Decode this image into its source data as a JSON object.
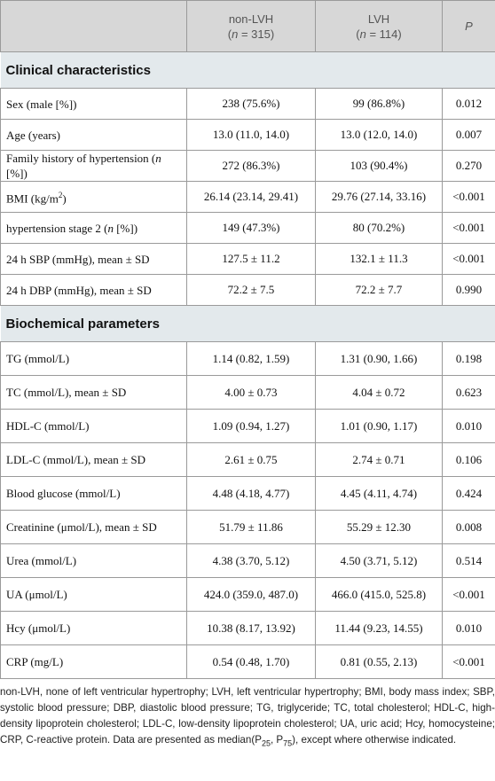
{
  "table": {
    "header": [
      {
        "lines": [
          [
            "non-LVH"
          ],
          [
            "(",
            {
              "i": "n"
            },
            " = 315)"
          ]
        ]
      },
      {
        "lines": [
          [
            "LVH"
          ],
          [
            "(",
            {
              "i": "n"
            },
            " = 114)"
          ]
        ]
      },
      {
        "lines": [
          [
            {
              "i": "P"
            }
          ]
        ]
      }
    ],
    "sections": [
      {
        "title": "Clinical characteristics",
        "rows": [
          {
            "label": "Sex (male [%])",
            "cells": [
              "238 (75.6%)",
              "99 (86.8%)",
              "0.012"
            ]
          },
          {
            "label": "Age (years)",
            "cells": [
              "13.0 (11.0, 14.0)",
              "13.0 (12.0, 14.0)",
              "0.007"
            ]
          },
          {
            "label": [
              "Family history of hypertension (",
              {
                "i": "n"
              },
              " [%])"
            ],
            "cells": [
              "272 (86.3%)",
              "103 (90.4%)",
              "0.270"
            ]
          },
          {
            "label": [
              "BMI (kg/m",
              {
                "sup": "2"
              },
              ")"
            ],
            "cells": [
              "26.14 (23.14, 29.41)",
              "29.76 (27.14, 33.16)",
              "<0.001"
            ]
          },
          {
            "label": [
              "hypertension stage 2 (",
              {
                "i": "n"
              },
              " [%])"
            ],
            "cells": [
              "149 (47.3%)",
              "80 (70.2%)",
              "<0.001"
            ]
          },
          {
            "label": "24 h SBP (mmHg), mean ± SD",
            "cells": [
              "127.5 ± 11.2",
              "132.1 ± 11.3",
              "<0.001"
            ]
          },
          {
            "label": "24 h DBP (mmHg), mean ± SD",
            "cells": [
              "72.2 ± 7.5",
              "72.2 ± 7.7",
              "0.990"
            ]
          }
        ]
      },
      {
        "title": "Biochemical parameters",
        "rows": [
          {
            "label": "TG (mmol/L)",
            "cells": [
              "1.14 (0.82, 1.59)",
              "1.31 (0.90, 1.66)",
              "0.198"
            ]
          },
          {
            "label": "TC (mmol/L), mean ± SD",
            "cells": [
              "4.00 ± 0.73",
              "4.04 ± 0.72",
              "0.623"
            ]
          },
          {
            "label": "HDL-C (mmol/L)",
            "cells": [
              "1.09 (0.94, 1.27)",
              "1.01 (0.90, 1.17)",
              "0.010"
            ]
          },
          {
            "label": "LDL-C (mmol/L), mean ± SD",
            "cells": [
              "2.61 ± 0.75",
              "2.74 ± 0.71",
              "0.106"
            ]
          },
          {
            "label": "Blood glucose (mmol/L)",
            "cells": [
              "4.48 (4.18, 4.77)",
              "4.45 (4.11, 4.74)",
              "0.424"
            ]
          },
          {
            "label": "Creatinine (μmol/L), mean ± SD",
            "cells": [
              "51.79 ± 11.86",
              "55.29 ± 12.30",
              "0.008"
            ]
          },
          {
            "label": "Urea (mmol/L)",
            "cells": [
              "4.38 (3.70, 5.12)",
              "4.50 (3.71, 5.12)",
              "0.514"
            ]
          },
          {
            "label": "UA (μmol/L)",
            "cells": [
              "424.0 (359.0, 487.0)",
              "466.0 (415.0, 525.8)",
              "<0.001"
            ]
          },
          {
            "label": "Hcy (μmol/L)",
            "cells": [
              "10.38 (8.17, 13.92)",
              "11.44 (9.23, 14.55)",
              "0.010"
            ]
          },
          {
            "label": "CRP (mg/L)",
            "cells": [
              "0.54 (0.48, 1.70)",
              "0.81 (0.55, 2.13)",
              "<0.001"
            ]
          }
        ]
      }
    ],
    "footnote": [
      "non-LVH, none of left ventricular hypertrophy; LVH, left ventricular hypertrophy; BMI, body mass index; SBP, systolic blood pressure; DBP, diastolic blood pressure; TG, triglyceride; TC, total cholesterol; HDL-C, high-density lipoprotein cholesterol; LDL-C, low-density lipoprotein cholesterol; UA, uric acid; Hcy, homocysteine; CRP, C-reactive protein. Data are presented as median(P",
      {
        "sub": "25"
      },
      ", P",
      {
        "sub": "75"
      },
      "), except where otherwise indicated."
    ]
  }
}
